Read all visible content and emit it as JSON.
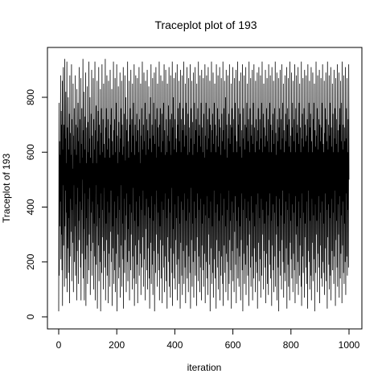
{
  "chart_data": {
    "type": "line",
    "title": "Traceplot plot of 193",
    "xlabel": "iteration",
    "ylabel": "Traceplot of 193",
    "xlim": [
      0,
      1000
    ],
    "ylim": [
      0,
      950
    ],
    "xticks": [
      0,
      200,
      400,
      600,
      800,
      1000
    ],
    "yticks": [
      0,
      200,
      400,
      600,
      800
    ],
    "grid": false,
    "series": [
      {
        "color": "#000000",
        "y": [
          20,
          780,
          150,
          640,
          330,
          590,
          420,
          880,
          210,
          750,
          300,
          700,
          170,
          860,
          40,
          610,
          480,
          910,
          260,
          520,
          700,
          110,
          940,
          330,
          650,
          460,
          820,
          140,
          560,
          380,
          930,
          90,
          690,
          250,
          470,
          800,
          160,
          610,
          360,
          740,
          50,
          880,
          220,
          670,
          430,
          590,
          310,
          920,
          130,
          720,
          390,
          540,
          270,
          850,
          90,
          660,
          480,
          760,
          200,
          610,
          330,
          880,
          150,
          700,
          410,
          590,
          60,
          830,
          240,
          690,
          470,
          780,
          120,
          640,
          350,
          910,
          280,
          560,
          420,
          720,
          180,
          870,
          60,
          630,
          390,
          760,
          230,
          580,
          500,
          940,
          140,
          680,
          320,
          820,
          60,
          610,
          450,
          730,
          210,
          890,
          40,
          560,
          360,
          690,
          260,
          840,
          120,
          710,
          430,
          600,
          170,
          930,
          300,
          650,
          470,
          800,
          80,
          580,
          240,
          740,
          380,
          900,
          150,
          660,
          420,
          560,
          270,
          870,
          100,
          720,
          340,
          610,
          220,
          930,
          60,
          680,
          480,
          770,
          190,
          560,
          330,
          860,
          30,
          640,
          410,
          750,
          260,
          910,
          130,
          700,
          360,
          590,
          200,
          830,
          20,
          670,
          450,
          760,
          160,
          920,
          290,
          600,
          390,
          720,
          100,
          850,
          240,
          630,
          470,
          580,
          180,
          940,
          60,
          690,
          340,
          760,
          280,
          880,
          150,
          610,
          420,
          720,
          50,
          860,
          230,
          650,
          380,
          580,
          110,
          900,
          310,
          700,
          460,
          760,
          200,
          830,
          40,
          640,
          330,
          590,
          250,
          930,
          120,
          680,
          420,
          720,
          170,
          870,
          90,
          600,
          360,
          780,
          230,
          920,
          20,
          660,
          440,
          560,
          300,
          840,
          140,
          710,
          390,
          600,
          180,
          890,
          70,
          650,
          480,
          760,
          260,
          860,
          110,
          700,
          340,
          590,
          210,
          910,
          30,
          620,
          430,
          740,
          160,
          880,
          280,
          570,
          370,
          800,
          90,
          680,
          450,
          720,
          200,
          930,
          130,
          640,
          320,
          580,
          240,
          860,
          60,
          700,
          410,
          760,
          170,
          900,
          300,
          600,
          380,
          720,
          100,
          850,
          220,
          660,
          470,
          780,
          140,
          920,
          40,
          590,
          350,
          700,
          260,
          880,
          120,
          640,
          420,
          740,
          190,
          870,
          50,
          680,
          330,
          600,
          280,
          910,
          150,
          720,
          440,
          560,
          230,
          850,
          80,
          660,
          390,
          760,
          180,
          930,
          290,
          610,
          460,
          700,
          110,
          890,
          210,
          640,
          370,
          780,
          60,
          860,
          320,
          590,
          430,
          720,
          170,
          900,
          100,
          680,
          250,
          610,
          400,
          840,
          140,
          740,
          30,
          650,
          360,
          800,
          270,
          920,
          120,
          600,
          440,
          700,
          190,
          870,
          80,
          660,
          350,
          780,
          240,
          890,
          20,
          630,
          410,
          720,
          160,
          910,
          300,
          580,
          460,
          760,
          110,
          850,
          230,
          690,
          380,
          620,
          170,
          930,
          60,
          700,
          330,
          760,
          280,
          880,
          140,
          600,
          420,
          740,
          50,
          860,
          260,
          640,
          390,
          780,
          180,
          920,
          90,
          680,
          450,
          590,
          220,
          900,
          130,
          720,
          360,
          600,
          30,
          850,
          290,
          660,
          430,
          770,
          200,
          910,
          110,
          640,
          380,
          720,
          70,
          880,
          250,
          590,
          470,
          740,
          160,
          930,
          40,
          690,
          320,
          800,
          230,
          870,
          140,
          610,
          410,
          720,
          100,
          890,
          280,
          650,
          360,
          600,
          190,
          920,
          60,
          700,
          440,
          760,
          210,
          860,
          120,
          640,
          340,
          780,
          30,
          900,
          270,
          600,
          420,
          720,
          150,
          880,
          80,
          680,
          390,
          760,
          240,
          930,
          120,
          620,
          450,
          700,
          180,
          850,
          50,
          660,
          350,
          780,
          260,
          910,
          140,
          590,
          430,
          740,
          90,
          870,
          220,
          690,
          380,
          600,
          160,
          920,
          30,
          650,
          470,
          760,
          280,
          860,
          110,
          710,
          340,
          590,
          200,
          890,
          70,
          630,
          420,
          780,
          240,
          910,
          150,
          680,
          360,
          720,
          40,
          850,
          290,
          600,
          450,
          760,
          130,
          930,
          220,
          660,
          390,
          700,
          90,
          880,
          180,
          620,
          430,
          780,
          60,
          900,
          260,
          690,
          340,
          600,
          170,
          870,
          110,
          740,
          410,
          580,
          230,
          920,
          50,
          660,
          370,
          780,
          200,
          880,
          140,
          610,
          440,
          720,
          80,
          910,
          300,
          650,
          360,
          760,
          190,
          860,
          20,
          700,
          420,
          600,
          250,
          930,
          120,
          680,
          330,
          740,
          160,
          890,
          70,
          630,
          460,
          780,
          210,
          850,
          140,
          700,
          380,
          600,
          30,
          920,
          280,
          660,
          410,
          760,
          180,
          880,
          100,
          620,
          350,
          720,
          240,
          910,
          60,
          690,
          450,
          590,
          150,
          870,
          220,
          740,
          370,
          640,
          120,
          930,
          40,
          680,
          430,
          760,
          260,
          860,
          160,
          610,
          330,
          800,
          90,
          900,
          230,
          700,
          390,
          580,
          200,
          880,
          60,
          650,
          460,
          740,
          120,
          920,
          280,
          630,
          350,
          700,
          170,
          850,
          30,
          690,
          420,
          760,
          240,
          910,
          130,
          600,
          380,
          720,
          90,
          870,
          310,
          660,
          440,
          780,
          190,
          900,
          50,
          640,
          350,
          600,
          250,
          930,
          140,
          700,
          400,
          760,
          110,
          860,
          220,
          620,
          330,
          740,
          60,
          890,
          280,
          680,
          450,
          580,
          170,
          920,
          20,
          650,
          390,
          760,
          230,
          880,
          120,
          610,
          430,
          700,
          190,
          910,
          80,
          690,
          360,
          780,
          260,
          850,
          150,
          640,
          420,
          720,
          40,
          930,
          300,
          600,
          350,
          760,
          180,
          870,
          110,
          660,
          440,
          700,
          220,
          900,
          60,
          630,
          380,
          780,
          140,
          920,
          250,
          690,
          330,
          600,
          90,
          860,
          200,
          720,
          410,
          640,
          160,
          890,
          30,
          680,
          450,
          760,
          270,
          910,
          130,
          610,
          360,
          720,
          210,
          880,
          70,
          650,
          430,
          780,
          150,
          930,
          300,
          600,
          390,
          740,
          100,
          850,
          240,
          690,
          340,
          620,
          180,
          900,
          50,
          660,
          420,
          760,
          230,
          870,
          120,
          640,
          370,
          720,
          80,
          920,
          280,
          600,
          450,
          780,
          190,
          880,
          140,
          700,
          350,
          600,
          40,
          910,
          260,
          680,
          410,
          740,
          170,
          860,
          90,
          630,
          380,
          760,
          220,
          930,
          110,
          670,
          440,
          590,
          300,
          890,
          60,
          720,
          330,
          640,
          180,
          870,
          20,
          690,
          430,
          760,
          240,
          900,
          150,
          610,
          370,
          720,
          100,
          920,
          280,
          650,
          460,
          780,
          200,
          850,
          70,
          680,
          340,
          600,
          160,
          880,
          130,
          740,
          420,
          640,
          250,
          910,
          30,
          700,
          390,
          760,
          190,
          870,
          110,
          620,
          450,
          720,
          60,
          930,
          270,
          660,
          350,
          600,
          210,
          890,
          140,
          690,
          410,
          780,
          90,
          860,
          230,
          640,
          380,
          720,
          170,
          920,
          50,
          600,
          440,
          760,
          300,
          880,
          120,
          670,
          330,
          700,
          200,
          910,
          80,
          630,
          420,
          780,
          150,
          850,
          260,
          690,
          360,
          600,
          110,
          930,
          40,
          650,
          450,
          740,
          220,
          870,
          160,
          620,
          380,
          760,
          70,
          900,
          290,
          700,
          340,
          640,
          180,
          880,
          120,
          660,
          420,
          720,
          30,
          920,
          240,
          600,
          460,
          780,
          200,
          860,
          100,
          690,
          350,
          740,
          150,
          910,
          60,
          640,
          430,
          600,
          270,
          890,
          130,
          720,
          370,
          780,
          210,
          850,
          20,
          680,
          410,
          620,
          160,
          930,
          300,
          660,
          350,
          760,
          90,
          880,
          230,
          610,
          440,
          720,
          180,
          900,
          50,
          700,
          380,
          640,
          260,
          870,
          140,
          690,
          420,
          780,
          110,
          920,
          200,
          630,
          340,
          600,
          160,
          860,
          80,
          670,
          450,
          760,
          250,
          890,
          130,
          720,
          390,
          640,
          30,
          930,
          290,
          610,
          410,
          700,
          190,
          880,
          100,
          660,
          360,
          780,
          150,
          910,
          60,
          690,
          430,
          620,
          240,
          850,
          170,
          740,
          380,
          600,
          120,
          900,
          220,
          650,
          460,
          760,
          40,
          870,
          280,
          630,
          350,
          720,
          180,
          920,
          110,
          680,
          410,
          600,
          300,
          890,
          70,
          700,
          440,
          760,
          140,
          860,
          230,
          640,
          370,
          780,
          50,
          930,
          260,
          610,
          420,
          700,
          160,
          880,
          120,
          690,
          340,
          640,
          200,
          910,
          80,
          650,
          450,
          760,
          220,
          870,
          150,
          600,
          390,
          720,
          180,
          920,
          500
        ]
      }
    ]
  }
}
